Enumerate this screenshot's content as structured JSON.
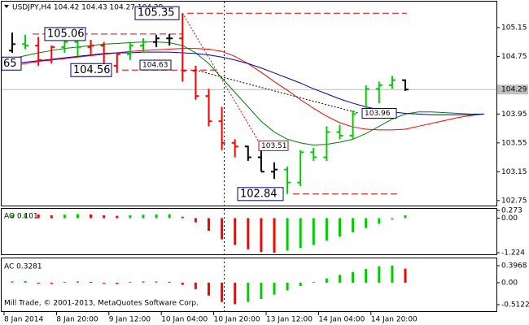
{
  "chart_data": {
    "type": "ohlc",
    "title": "USDJPY,H4  104.42 104.43 104.27 104.29",
    "categories": [
      "8 Jan 2014",
      null,
      null,
      null,
      "8 Jan 20:00",
      null,
      null,
      null,
      "9 Jan 12:00",
      null,
      null,
      null,
      "10 Jan 04:00",
      null,
      null,
      null,
      "10 Jan 20:00",
      null,
      null,
      null,
      "13 Jan 12:00",
      null,
      null,
      null,
      "14 Jan 04:00",
      null,
      null,
      null,
      "14 Jan 20:00",
      null,
      null,
      null,
      null,
      null,
      null,
      null,
      null
    ],
    "open": [
      104.83,
      104.92,
      104.9,
      104.7,
      104.88,
      104.95,
      104.88,
      104.9,
      104.62,
      104.78,
      104.9,
      104.95,
      105.0,
      105.0,
      104.55,
      104.2,
      103.85,
      103.55,
      103.5,
      103.35,
      103.15,
      103.18,
      103.0,
      103.42,
      103.35,
      103.7,
      103.65,
      103.95,
      104.3,
      104.35,
      104.42,
      null,
      null,
      null,
      null,
      null,
      null
    ],
    "high": [
      105.08,
      105.05,
      105.02,
      104.9,
      105.05,
      105.0,
      104.98,
      104.95,
      104.8,
      104.95,
      105.0,
      105.05,
      105.06,
      105.35,
      104.62,
      104.3,
      104.05,
      103.6,
      103.51,
      103.45,
      103.28,
      103.22,
      103.45,
      103.48,
      103.78,
      103.8,
      104.0,
      104.35,
      104.4,
      104.48,
      104.43,
      null,
      null,
      null,
      null,
      null,
      null
    ],
    "low": [
      104.8,
      104.85,
      104.62,
      104.65,
      104.8,
      104.75,
      104.78,
      104.52,
      104.52,
      104.7,
      104.8,
      104.88,
      104.9,
      104.4,
      104.15,
      103.78,
      103.45,
      103.35,
      103.3,
      103.15,
      103.05,
      102.84,
      102.95,
      103.3,
      103.3,
      103.6,
      103.6,
      103.9,
      104.1,
      104.3,
      104.27,
      null,
      null,
      null,
      null,
      null,
      null
    ],
    "close": [
      104.92,
      104.9,
      104.7,
      104.88,
      104.95,
      104.88,
      104.9,
      104.62,
      104.78,
      104.9,
      104.95,
      105.0,
      105.0,
      104.55,
      104.2,
      103.85,
      103.55,
      103.5,
      103.35,
      103.15,
      103.18,
      103.0,
      103.42,
      103.35,
      103.7,
      103.65,
      103.95,
      104.3,
      104.35,
      104.42,
      104.29,
      null,
      null,
      null,
      null,
      null,
      null
    ],
    "up_color": "#00cc00",
    "down_color": "#ff0000",
    "neutral_color": "#000000",
    "ylim": [
      102.68,
      105.51
    ],
    "yticks": [
      105.15,
      104.75,
      103.95,
      103.55,
      103.15,
      102.75
    ],
    "current_price": 104.29,
    "lines": [
      {
        "color": "#008000",
        "values": [
          104.72,
          104.76,
          104.8,
          104.83,
          104.86,
          104.88,
          104.9,
          104.92,
          104.93,
          104.94,
          104.95,
          104.95,
          104.94,
          104.9,
          104.8,
          104.65,
          104.45,
          104.25,
          104.05,
          103.85,
          103.7,
          103.6,
          103.55,
          103.52,
          103.53,
          103.56,
          103.6,
          103.68,
          103.78,
          103.88,
          103.95,
          103.98,
          103.98,
          103.97,
          103.96,
          103.95,
          103.95
        ]
      },
      {
        "color": "#ff0000",
        "values": [
          104.62,
          104.65,
          104.68,
          104.7,
          104.72,
          104.74,
          104.76,
          104.78,
          104.8,
          104.82,
          104.83,
          104.84,
          104.85,
          104.86,
          104.86,
          104.85,
          104.82,
          104.75,
          104.65,
          104.53,
          104.4,
          104.28,
          104.15,
          104.03,
          103.92,
          103.83,
          103.77,
          103.74,
          103.73,
          103.73,
          103.74,
          103.78,
          103.82,
          103.86,
          103.9,
          103.93,
          103.95
        ]
      },
      {
        "color": "#0000c0",
        "values": [
          104.65,
          104.67,
          104.69,
          104.71,
          104.73,
          104.75,
          104.77,
          104.79,
          104.8,
          104.8,
          104.81,
          104.81,
          104.81,
          104.8,
          104.79,
          104.77,
          104.74,
          104.7,
          104.65,
          104.59,
          104.52,
          104.45,
          104.38,
          104.3,
          104.23,
          104.16,
          104.1,
          104.05,
          104.01,
          103.98,
          103.96,
          103.95,
          103.94,
          103.94,
          103.94,
          103.94,
          103.95
        ]
      }
    ],
    "levels": [
      105.35,
      105.06,
      104.56,
      102.84
    ],
    "annotations": [
      105.35,
      105.06,
      104.56,
      104.63,
      103.96,
      103.51,
      102.84
    ],
    "clipped_label": "65",
    "copyright": "Mill Trade, © 2001-2013, MetaQuotes Software Corp.",
    "oscillators": [
      {
        "title": "AO 0.101",
        "values": [
          0.12,
          0.15,
          0.13,
          0.1,
          0.12,
          0.14,
          0.13,
          0.1,
          0.08,
          0.1,
          0.12,
          0.13,
          0.14,
          0.05,
          -0.15,
          -0.45,
          -0.75,
          -0.95,
          -1.1,
          -1.2,
          -1.22,
          -1.15,
          -1.05,
          -0.95,
          -0.8,
          -0.65,
          -0.5,
          -0.35,
          -0.2,
          -0.05,
          0.1,
          null,
          null,
          null,
          null,
          null,
          null
        ],
        "ylim": [
          -1.28,
          0.33
        ],
        "yticks": [
          0.273,
          {
            "value": 0,
            "label": "0.00"
          },
          -1.224
        ]
      },
      {
        "title": "AC 0.3281",
        "values": [
          0.03,
          0.04,
          -0.02,
          -0.03,
          0.02,
          0.03,
          0.02,
          -0.02,
          -0.03,
          0.02,
          0.03,
          0.03,
          0.02,
          -0.05,
          -0.15,
          -0.3,
          -0.45,
          -0.5,
          -0.45,
          -0.38,
          -0.28,
          -0.18,
          -0.08,
          0.02,
          0.1,
          0.18,
          0.25,
          0.32,
          0.38,
          0.4,
          0.3281,
          null,
          null,
          null,
          null,
          null,
          null
        ],
        "ylim": [
          -0.664,
          0.548
        ],
        "yticks": [
          0.3968,
          {
            "value": 0,
            "label": "0.00"
          },
          -0.5122
        ]
      }
    ]
  }
}
